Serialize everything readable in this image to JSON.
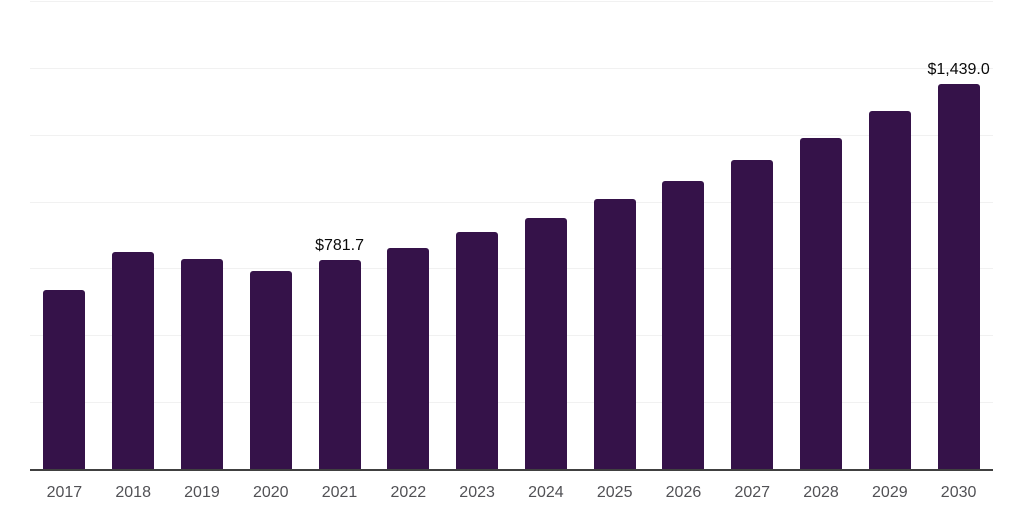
{
  "chart_data": {
    "type": "bar",
    "title": "",
    "xlabel": "",
    "ylabel": "",
    "categories": [
      "2017",
      "2018",
      "2019",
      "2020",
      "2021",
      "2022",
      "2023",
      "2024",
      "2025",
      "2026",
      "2027",
      "2028",
      "2029",
      "2030"
    ],
    "values": [
      670,
      813,
      785,
      741,
      781.7,
      828,
      885,
      940,
      1009,
      1077,
      1156,
      1239,
      1339,
      1439.0
    ],
    "value_labels": [
      "",
      "",
      "",
      "",
      "$781.7",
      "",
      "",
      "",
      "",
      "",
      "",
      "",
      "",
      "$1,439.0"
    ],
    "ylim": [
      0,
      1750
    ],
    "grid_step": 250,
    "grid": true,
    "y_tick_labels_visible": false,
    "legend": "none",
    "colors": {
      "bar": "#351249",
      "gridline": "#f1f1f1",
      "axis_line": "#404040",
      "tick_label": "#515155",
      "value_label": "#0a0a0a",
      "background": "#ffffff"
    }
  }
}
